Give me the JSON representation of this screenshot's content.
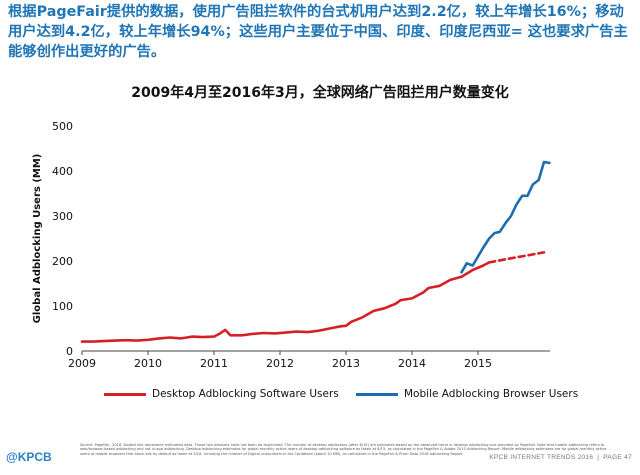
{
  "headline": "根据PageFair提供的数据，使用广告阻拦软件的台式机用户达到2.2亿，较上年增长16%；移动用户达到4.2亿，较上年增长94%；这些用户主要位于中国、印度、印度尼西亚= 这也要求广告主能够创作出更好的广告。",
  "chart_title": "2009年4月至2016年3月，全球网络广告阻拦用户数量变化",
  "chart_data": {
    "type": "line",
    "ylabel": "Global Adblocking Users (MM)",
    "xlabel": "",
    "ylim": [
      0,
      500
    ],
    "yticks": [
      "0",
      "100",
      "200",
      "300",
      "400",
      "500"
    ],
    "xlim": [
      2009.0,
      2016.0
    ],
    "xticks": [
      "2009",
      "2010",
      "2011",
      "2012",
      "2013",
      "2014",
      "2015"
    ],
    "grid": false,
    "legend_position": "bottom",
    "series": [
      {
        "name": "Desktop Adblocking Software Users",
        "color": "#d62028",
        "style": "solid",
        "points": [
          [
            2009.0,
            21
          ],
          [
            2009.17,
            21
          ],
          [
            2009.33,
            22
          ],
          [
            2009.5,
            23
          ],
          [
            2009.67,
            24
          ],
          [
            2009.83,
            23
          ],
          [
            2010.0,
            25
          ],
          [
            2010.17,
            28
          ],
          [
            2010.33,
            30
          ],
          [
            2010.5,
            28
          ],
          [
            2010.67,
            32
          ],
          [
            2010.83,
            31
          ],
          [
            2011.0,
            32
          ],
          [
            2011.08,
            38
          ],
          [
            2011.17,
            47
          ],
          [
            2011.25,
            35
          ],
          [
            2011.42,
            35
          ],
          [
            2011.58,
            38
          ],
          [
            2011.75,
            40
          ],
          [
            2011.92,
            39
          ],
          [
            2012.08,
            41
          ],
          [
            2012.25,
            43
          ],
          [
            2012.42,
            42
          ],
          [
            2012.58,
            45
          ],
          [
            2012.75,
            50
          ],
          [
            2012.92,
            55
          ],
          [
            2013.0,
            56
          ],
          [
            2013.08,
            65
          ],
          [
            2013.25,
            75
          ],
          [
            2013.42,
            89
          ],
          [
            2013.58,
            95
          ],
          [
            2013.75,
            105
          ],
          [
            2013.83,
            113
          ],
          [
            2014.0,
            117
          ],
          [
            2014.17,
            130
          ],
          [
            2014.25,
            140
          ],
          [
            2014.42,
            145
          ],
          [
            2014.58,
            158
          ],
          [
            2014.75,
            165
          ],
          [
            2014.92,
            180
          ],
          [
            2015.08,
            190
          ],
          [
            2015.17,
            197
          ]
        ]
      },
      {
        "name": "Desktop Adblocking Software Users (projected)",
        "color": "#d62028",
        "style": "dashed",
        "points": [
          [
            2015.17,
            197
          ],
          [
            2015.5,
            206
          ],
          [
            2016.0,
            219
          ]
        ]
      },
      {
        "name": "Mobile Adblocking Browser Users",
        "color": "#1e6cb0",
        "style": "solid",
        "points": [
          [
            2014.75,
            175
          ],
          [
            2014.83,
            195
          ],
          [
            2014.92,
            190
          ],
          [
            2015.0,
            210
          ],
          [
            2015.08,
            230
          ],
          [
            2015.17,
            250
          ],
          [
            2015.25,
            262
          ],
          [
            2015.33,
            265
          ],
          [
            2015.42,
            285
          ],
          [
            2015.5,
            300
          ],
          [
            2015.58,
            325
          ],
          [
            2015.67,
            345
          ],
          [
            2015.75,
            345
          ],
          [
            2015.83,
            370
          ],
          [
            2015.92,
            380
          ],
          [
            2016.0,
            420
          ],
          [
            2016.08,
            418
          ]
        ]
      }
    ]
  },
  "legend": {
    "desktop_label": "Desktop Adblocking Software Users",
    "mobile_label": "Mobile Adblocking Browser Users"
  },
  "footnote": "Source: PageFair, 2016. Dotted line represents estimated data. These two datasets have not been de-duplicated. The number of desktop adblockers (after 6/15) are estimates based on the observed trend in desktop adblocking and provided by PageFair. Note that mobile adblocking refers to web/browser-based adblocking and not in-app adblocking. Desktop adblocking estimates for global monthly active users of desktop adblocking software as taken at 6/15; as calculated in the PageFair & Adobe 2015 Adblocking Report. Mobile adblocking estimates are for global monthly active users of mobile browsers that block ads by default as taken at 3/16, including the number of Digicel subscribers in the Caribbean (about 10 MM), as calculated in the PageFair & Priori Data 2016 Adblocking Report.",
  "logo": "@KPCB",
  "footer": {
    "brand": "KPCB INTERNET TRENDS 2016",
    "separator": "|",
    "page": "PAGE 47"
  }
}
